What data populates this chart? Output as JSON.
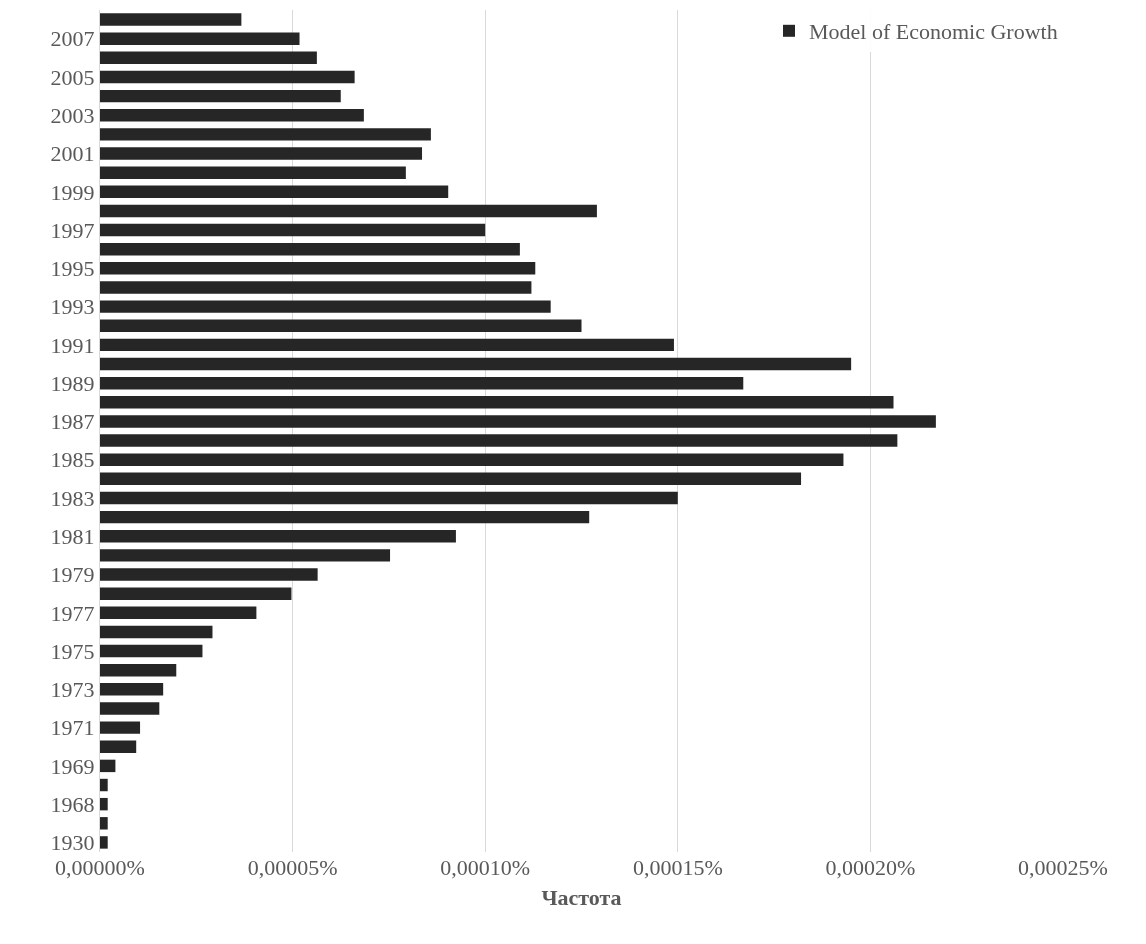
{
  "chart_data": {
    "type": "bar",
    "orientation": "horizontal",
    "xlabel": "Частота",
    "categories": [
      null,
      "2007",
      null,
      "2005",
      null,
      "2003",
      null,
      "2001",
      null,
      "1999",
      null,
      "1997",
      null,
      "1995",
      null,
      "1993",
      null,
      "1991",
      null,
      "1989",
      null,
      "1987",
      null,
      "1985",
      null,
      "1983",
      null,
      "1981",
      null,
      "1979",
      null,
      "1977",
      null,
      "1975",
      null,
      "1973",
      null,
      "1971",
      null,
      "1969",
      null,
      "1968",
      null,
      "1930"
    ],
    "series": [
      {
        "name": "Model of Economic Growth",
        "color": "#262626",
        "values": [
          3.67e-05,
          5.18e-05,
          5.63e-05,
          6.61e-05,
          6.25e-05,
          6.85e-05,
          8.59e-05,
          8.36e-05,
          7.94e-05,
          9.04e-05,
          0.000129,
          0.0001,
          0.000109,
          0.000113,
          0.000112,
          0.000117,
          0.000125,
          0.000149,
          0.000195,
          0.000167,
          0.000206,
          0.000217,
          0.000207,
          0.000193,
          0.000182,
          0.00015,
          0.000127,
          9.24e-05,
          7.53e-05,
          5.65e-05,
          4.97e-05,
          4.06e-05,
          2.92e-05,
          2.66e-05,
          1.98e-05,
          1.64e-05,
          1.54e-05,
          1.04e-05,
          9.4e-06,
          4e-06,
          2e-06,
          2e-06,
          2e-06,
          2e-06
        ]
      }
    ],
    "xlim": [
      0,
      0.00025
    ],
    "xticks": [
      {
        "value": 0,
        "label": "0,00000%"
      },
      {
        "value": 5e-05,
        "label": "0,00005%"
      },
      {
        "value": 0.0001,
        "label": "0,00010%"
      },
      {
        "value": 0.00015,
        "label": "0,00015%"
      },
      {
        "value": 0.0002,
        "label": "0,00020%"
      },
      {
        "value": 0.00025,
        "label": "0,00025%"
      }
    ],
    "grid": "x",
    "legend": "top right"
  }
}
